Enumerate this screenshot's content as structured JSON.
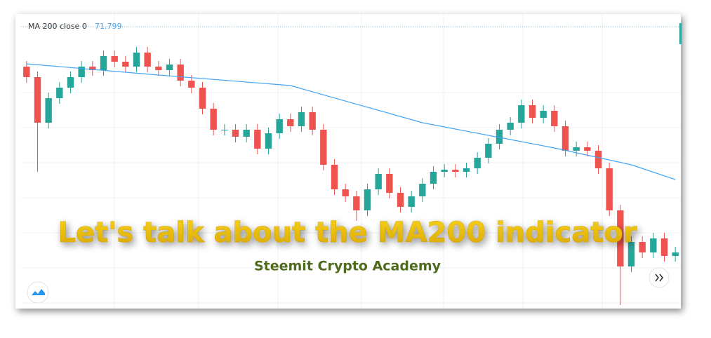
{
  "chart_data": {
    "type": "candlestick",
    "title": "Let's talk about the MA200 indicator",
    "subtitle": "Steemit Crypto Academy",
    "indicator": {
      "label": "MA 200 close 0",
      "value_label": "71.799",
      "color": "#42a5f5"
    },
    "up_color": "#26a69a",
    "down_color": "#ef5350",
    "ylim": [
      0,
      420
    ],
    "grid": true,
    "open": [
      345,
      330,
      265,
      300,
      315,
      330,
      345,
      340,
      360,
      352,
      345,
      365,
      345,
      340,
      348,
      325,
      315,
      285,
      255,
      255,
      245,
      255,
      228,
      250,
      270,
      260,
      280,
      255,
      205,
      170,
      160,
      140,
      170,
      192,
      165,
      145,
      160,
      178,
      195,
      198,
      195,
      200,
      215,
      235,
      255,
      265,
      290,
      272,
      282,
      260,
      225,
      230,
      225,
      200,
      140,
      60,
      95,
      80,
      100,
      75
    ],
    "high": [
      353,
      338,
      308,
      323,
      338,
      353,
      353,
      368,
      368,
      360,
      373,
      373,
      353,
      356,
      356,
      333,
      323,
      293,
      263,
      263,
      263,
      263,
      258,
      278,
      278,
      288,
      288,
      263,
      213,
      178,
      168,
      178,
      200,
      200,
      173,
      168,
      186,
      203,
      206,
      206,
      208,
      223,
      243,
      263,
      273,
      298,
      298,
      290,
      290,
      268,
      238,
      238,
      233,
      208,
      148,
      103,
      103,
      108,
      108,
      88
    ],
    "low": [
      322,
      195,
      257,
      292,
      307,
      322,
      332,
      332,
      344,
      337,
      337,
      337,
      332,
      332,
      317,
      307,
      277,
      247,
      247,
      237,
      237,
      220,
      220,
      242,
      252,
      252,
      247,
      197,
      162,
      152,
      125,
      132,
      162,
      157,
      137,
      137,
      152,
      170,
      187,
      187,
      187,
      192,
      207,
      227,
      247,
      257,
      264,
      264,
      252,
      217,
      217,
      217,
      192,
      132,
      5,
      52,
      72,
      72,
      67,
      67
    ],
    "close": [
      330,
      265,
      300,
      315,
      330,
      345,
      340,
      360,
      352,
      345,
      365,
      345,
      340,
      348,
      325,
      315,
      285,
      255,
      255,
      245,
      255,
      228,
      250,
      270,
      260,
      280,
      255,
      205,
      170,
      160,
      140,
      170,
      192,
      165,
      145,
      160,
      178,
      195,
      198,
      195,
      200,
      215,
      235,
      255,
      265,
      290,
      272,
      282,
      260,
      225,
      230,
      225,
      200,
      140,
      60,
      95,
      80,
      100,
      75,
      80
    ],
    "ma": {
      "x": [
        0,
        12,
        24,
        36,
        48,
        55,
        59
      ],
      "values": [
        349,
        333,
        318,
        265,
        229,
        205,
        184
      ]
    }
  }
}
